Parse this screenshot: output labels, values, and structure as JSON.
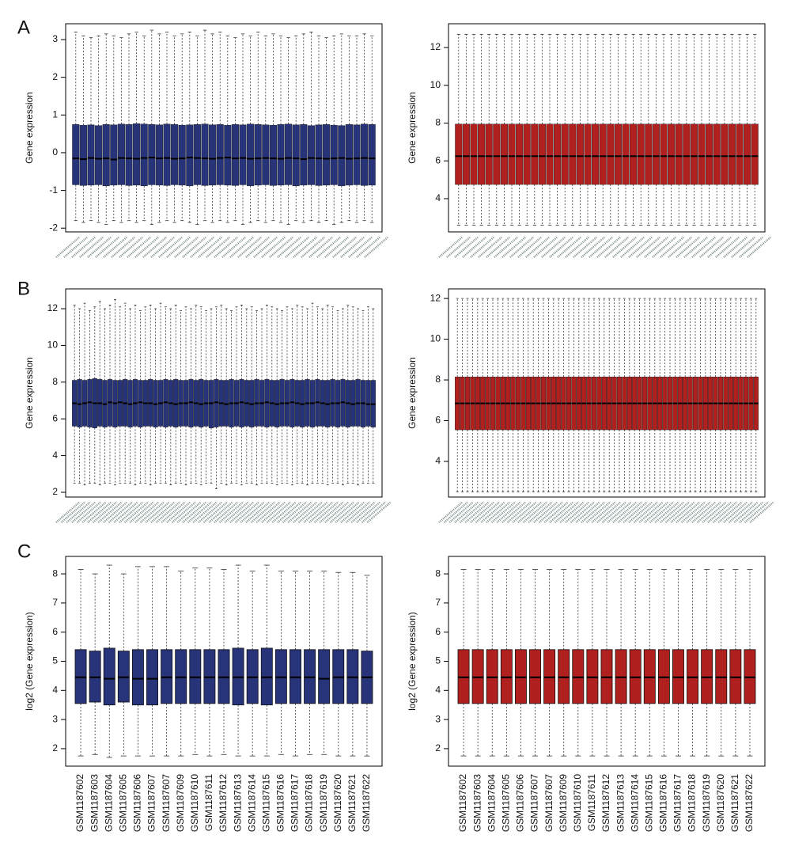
{
  "panel_labels": [
    "A",
    "B",
    "C"
  ],
  "chart_data": [
    {
      "type": "box",
      "ylabel": "Gene expression",
      "color": "#27347a",
      "ylim": [
        -2.1,
        3.42
      ],
      "yticks": [
        -2,
        -1,
        0,
        1,
        2,
        3
      ],
      "whislo": [
        -1.8,
        -1.85,
        -1.8,
        -1.85,
        -1.9,
        -1.8,
        -1.85,
        -1.8,
        -1.85,
        -1.8,
        -1.9,
        -1.85,
        -1.8,
        -1.85,
        -1.8,
        -1.85,
        -1.9,
        -1.8,
        -1.85,
        -1.8,
        -1.85,
        -1.8,
        -1.9,
        -1.85,
        -1.8,
        -1.85,
        -1.8,
        -1.85,
        -1.9,
        -1.8,
        -1.85,
        -1.8,
        -1.85,
        -1.8,
        -1.9,
        -1.85,
        -1.8,
        -1.85,
        -1.8,
        -1.85
      ],
      "q1": [
        -0.85,
        -0.87,
        -0.86,
        -0.85,
        -0.88,
        -0.86,
        -0.85,
        -0.87,
        -0.86,
        -0.88,
        -0.85,
        -0.86,
        -0.87,
        -0.85,
        -0.86,
        -0.88,
        -0.85,
        -0.87,
        -0.86,
        -0.85,
        -0.86,
        -0.87,
        -0.85,
        -0.88,
        -0.86,
        -0.85,
        -0.87,
        -0.86,
        -0.85,
        -0.88,
        -0.86,
        -0.85,
        -0.87,
        -0.86,
        -0.85,
        -0.88,
        -0.86,
        -0.85,
        -0.87,
        -0.86
      ],
      "med": [
        -0.15,
        -0.17,
        -0.14,
        -0.16,
        -0.15,
        -0.18,
        -0.14,
        -0.15,
        -0.16,
        -0.14,
        -0.13,
        -0.15,
        -0.14,
        -0.16,
        -0.15,
        -0.13,
        -0.14,
        -0.15,
        -0.16,
        -0.14,
        -0.13,
        -0.15,
        -0.14,
        -0.16,
        -0.15,
        -0.14,
        -0.15,
        -0.16,
        -0.14,
        -0.15,
        -0.17,
        -0.14,
        -0.15,
        -0.16,
        -0.15,
        -0.14,
        -0.16,
        -0.15,
        -0.14,
        -0.15
      ],
      "q3": [
        0.75,
        0.73,
        0.74,
        0.72,
        0.75,
        0.74,
        0.76,
        0.75,
        0.77,
        0.76,
        0.75,
        0.74,
        0.76,
        0.75,
        0.73,
        0.74,
        0.75,
        0.76,
        0.74,
        0.75,
        0.73,
        0.75,
        0.74,
        0.76,
        0.75,
        0.74,
        0.73,
        0.75,
        0.76,
        0.74,
        0.75,
        0.72,
        0.74,
        0.75,
        0.73,
        0.72,
        0.75,
        0.74,
        0.76,
        0.75
      ],
      "whishi": [
        3.2,
        3.1,
        3.05,
        3.1,
        3.15,
        3.1,
        3.05,
        3.15,
        3.2,
        3.1,
        3.25,
        3.15,
        3.2,
        3.1,
        3.15,
        3.2,
        3.1,
        3.25,
        3.15,
        3.2,
        3.1,
        3.05,
        3.15,
        3.1,
        3.2,
        3.1,
        3.15,
        3.1,
        3.05,
        3.1,
        3.15,
        3.2,
        3.1,
        3.05,
        3.1,
        3.15,
        3.1,
        3.1,
        3.15,
        3.1
      ]
    },
    {
      "type": "box",
      "ylabel": "Gene expression",
      "color": "#b0201e",
      "ylim": [
        2.24,
        13.26
      ],
      "yticks": [
        4,
        6,
        8,
        10,
        12
      ],
      "whislo": [
        2.6,
        2.6,
        2.6,
        2.6,
        2.6,
        2.6,
        2.6,
        2.6,
        2.6,
        2.6,
        2.6,
        2.6,
        2.6,
        2.6,
        2.6,
        2.6,
        2.6,
        2.6,
        2.6,
        2.6,
        2.6,
        2.6,
        2.6,
        2.6,
        2.6,
        2.6,
        2.6,
        2.6,
        2.6,
        2.6,
        2.6,
        2.6,
        2.6,
        2.6,
        2.6,
        2.6,
        2.6,
        2.6,
        2.6,
        2.6
      ],
      "q1": [
        4.75,
        4.75,
        4.75,
        4.75,
        4.75,
        4.75,
        4.75,
        4.75,
        4.75,
        4.75,
        4.75,
        4.75,
        4.75,
        4.75,
        4.75,
        4.75,
        4.75,
        4.75,
        4.75,
        4.75,
        4.75,
        4.75,
        4.75,
        4.75,
        4.75,
        4.75,
        4.75,
        4.75,
        4.75,
        4.75,
        4.75,
        4.75,
        4.75,
        4.75,
        4.75,
        4.75,
        4.75,
        4.75,
        4.75,
        4.75
      ],
      "med": [
        6.25,
        6.25,
        6.25,
        6.25,
        6.25,
        6.25,
        6.25,
        6.25,
        6.25,
        6.25,
        6.25,
        6.25,
        6.25,
        6.25,
        6.25,
        6.25,
        6.25,
        6.25,
        6.25,
        6.25,
        6.25,
        6.25,
        6.25,
        6.25,
        6.25,
        6.25,
        6.25,
        6.25,
        6.25,
        6.25,
        6.25,
        6.25,
        6.25,
        6.25,
        6.25,
        6.25,
        6.25,
        6.25,
        6.25,
        6.25
      ],
      "q3": [
        7.95,
        7.95,
        7.95,
        7.95,
        7.95,
        7.95,
        7.95,
        7.95,
        7.95,
        7.95,
        7.95,
        7.95,
        7.95,
        7.95,
        7.95,
        7.95,
        7.95,
        7.95,
        7.95,
        7.95,
        7.95,
        7.95,
        7.95,
        7.95,
        7.95,
        7.95,
        7.95,
        7.95,
        7.95,
        7.95,
        7.95,
        7.95,
        7.95,
        7.95,
        7.95,
        7.95,
        7.95,
        7.95,
        7.95,
        7.95
      ],
      "whishi": [
        12.7,
        12.7,
        12.7,
        12.7,
        12.7,
        12.7,
        12.7,
        12.7,
        12.7,
        12.7,
        12.7,
        12.7,
        12.7,
        12.7,
        12.7,
        12.7,
        12.7,
        12.7,
        12.7,
        12.7,
        12.7,
        12.7,
        12.7,
        12.7,
        12.7,
        12.7,
        12.7,
        12.7,
        12.7,
        12.7,
        12.7,
        12.7,
        12.7,
        12.7,
        12.7,
        12.7,
        12.7,
        12.7,
        12.7,
        12.7
      ]
    },
    {
      "type": "box",
      "ylabel": "Gene expression",
      "color": "#27347a",
      "ylim": [
        1.74,
        13.08
      ],
      "yticks": [
        2,
        4,
        6,
        8,
        10,
        12
      ],
      "whislo": [
        2.5,
        2.5,
        2.4,
        2.5,
        2.5,
        2.4,
        2.5,
        2.5,
        2.4,
        2.5,
        2.5,
        2.5,
        2.4,
        2.5,
        2.5,
        2.4,
        2.5,
        2.5,
        2.5,
        2.4,
        2.5,
        2.5,
        2.4,
        2.5,
        2.5,
        2.4,
        2.5,
        2.5,
        2.2,
        2.5,
        2.4,
        2.5,
        2.5,
        2.4,
        2.5,
        2.5,
        2.4,
        2.5,
        2.5,
        2.5,
        2.4,
        2.5,
        2.5,
        2.4,
        2.5,
        2.5,
        2.4,
        2.5,
        2.5,
        2.5,
        2.4,
        2.5,
        2.5,
        2.4,
        2.5,
        2.5,
        2.4,
        2.5,
        2.5,
        2.5
      ],
      "q1": [
        5.6,
        5.55,
        5.6,
        5.55,
        5.5,
        5.6,
        5.55,
        5.6,
        5.55,
        5.6,
        5.6,
        5.55,
        5.6,
        5.55,
        5.6,
        5.6,
        5.55,
        5.6,
        5.55,
        5.6,
        5.55,
        5.6,
        5.6,
        5.55,
        5.6,
        5.55,
        5.6,
        5.5,
        5.55,
        5.6,
        5.6,
        5.55,
        5.6,
        5.55,
        5.6,
        5.55,
        5.6,
        5.6,
        5.55,
        5.6,
        5.55,
        5.6,
        5.6,
        5.55,
        5.6,
        5.55,
        5.6,
        5.55,
        5.6,
        5.6,
        5.55,
        5.6,
        5.55,
        5.6,
        5.55,
        5.6,
        5.6,
        5.55,
        5.6,
        5.55
      ],
      "med": [
        6.85,
        6.8,
        6.85,
        6.9,
        6.85,
        6.85,
        6.8,
        6.9,
        6.85,
        6.9,
        6.85,
        6.8,
        6.85,
        6.9,
        6.85,
        6.85,
        6.8,
        6.85,
        6.9,
        6.85,
        6.8,
        6.85,
        6.85,
        6.9,
        6.85,
        6.8,
        6.85,
        6.85,
        6.9,
        6.85,
        6.8,
        6.85,
        6.85,
        6.9,
        6.85,
        6.8,
        6.85,
        6.85,
        6.9,
        6.85,
        6.8,
        6.85,
        6.85,
        6.9,
        6.85,
        6.8,
        6.85,
        6.85,
        6.9,
        6.85,
        6.8,
        6.85,
        6.85,
        6.9,
        6.85,
        6.8,
        6.85,
        6.85,
        6.8,
        6.8
      ],
      "q3": [
        8.1,
        8.15,
        8.1,
        8.15,
        8.2,
        8.15,
        8.1,
        8.15,
        8.1,
        8.1,
        8.15,
        8.1,
        8.15,
        8.1,
        8.1,
        8.15,
        8.1,
        8.1,
        8.15,
        8.1,
        8.15,
        8.1,
        8.1,
        8.15,
        8.1,
        8.15,
        8.1,
        8.1,
        8.15,
        8.1,
        8.1,
        8.15,
        8.1,
        8.15,
        8.1,
        8.1,
        8.15,
        8.1,
        8.15,
        8.1,
        8.1,
        8.15,
        8.1,
        8.15,
        8.1,
        8.1,
        8.15,
        8.1,
        8.15,
        8.1,
        8.1,
        8.15,
        8.1,
        8.15,
        8.1,
        8.1,
        8.15,
        8.1,
        8.1,
        8.1
      ],
      "whishi": [
        12.2,
        12.0,
        12.3,
        11.9,
        12.1,
        12.4,
        12.0,
        12.2,
        12.5,
        12.1,
        12.3,
        12.0,
        12.2,
        11.9,
        12.1,
        12.2,
        12.0,
        12.3,
        12.1,
        12.0,
        12.2,
        11.9,
        12.1,
        12.0,
        12.2,
        12.1,
        11.9,
        12.0,
        12.1,
        12.2,
        12.0,
        11.9,
        12.1,
        12.2,
        12.0,
        12.1,
        11.9,
        12.0,
        12.2,
        12.1,
        12.0,
        11.9,
        12.1,
        12.0,
        12.2,
        12.1,
        12.0,
        12.3,
        12.1,
        12.0,
        12.2,
        12.1,
        11.9,
        12.0,
        12.2,
        12.1,
        12.0,
        11.9,
        12.1,
        12.0
      ]
    },
    {
      "type": "box",
      "ylabel": "Gene expression",
      "color": "#b0201e",
      "ylim": [
        2.25,
        12.47
      ],
      "yticks": [
        4,
        6,
        8,
        10,
        12
      ],
      "whislo": [
        2.5,
        2.5,
        2.5,
        2.5,
        2.5,
        2.5,
        2.5,
        2.5,
        2.5,
        2.5,
        2.5,
        2.5,
        2.5,
        2.5,
        2.5,
        2.5,
        2.5,
        2.5,
        2.5,
        2.5,
        2.5,
        2.5,
        2.5,
        2.5,
        2.5,
        2.5,
        2.5,
        2.5,
        2.5,
        2.5,
        2.5,
        2.5,
        2.5,
        2.5,
        2.5,
        2.5,
        2.5,
        2.5,
        2.5,
        2.5,
        2.5,
        2.5,
        2.5,
        2.5,
        2.5,
        2.5,
        2.5,
        2.5,
        2.5,
        2.5,
        2.5,
        2.5,
        2.5,
        2.5,
        2.5,
        2.5,
        2.5,
        2.5,
        2.5,
        2.5
      ],
      "q1": [
        5.55,
        5.55,
        5.55,
        5.55,
        5.55,
        5.55,
        5.55,
        5.55,
        5.55,
        5.55,
        5.55,
        5.55,
        5.55,
        5.55,
        5.55,
        5.55,
        5.55,
        5.55,
        5.55,
        5.55,
        5.55,
        5.55,
        5.55,
        5.55,
        5.55,
        5.55,
        5.55,
        5.55,
        5.55,
        5.55,
        5.55,
        5.55,
        5.55,
        5.55,
        5.55,
        5.55,
        5.55,
        5.55,
        5.55,
        5.55,
        5.55,
        5.55,
        5.55,
        5.55,
        5.55,
        5.55,
        5.55,
        5.55,
        5.55,
        5.55,
        5.55,
        5.55,
        5.55,
        5.55,
        5.55,
        5.55,
        5.55,
        5.55,
        5.55,
        5.55
      ],
      "med": [
        6.85,
        6.85,
        6.85,
        6.85,
        6.85,
        6.85,
        6.85,
        6.85,
        6.85,
        6.85,
        6.85,
        6.85,
        6.85,
        6.85,
        6.85,
        6.85,
        6.85,
        6.85,
        6.85,
        6.85,
        6.85,
        6.85,
        6.85,
        6.85,
        6.85,
        6.85,
        6.85,
        6.85,
        6.85,
        6.85,
        6.85,
        6.85,
        6.85,
        6.85,
        6.85,
        6.85,
        6.85,
        6.85,
        6.85,
        6.85,
        6.85,
        6.85,
        6.85,
        6.85,
        6.85,
        6.85,
        6.85,
        6.85,
        6.85,
        6.85,
        6.85,
        6.85,
        6.85,
        6.85,
        6.85,
        6.85,
        6.85,
        6.85,
        6.85,
        6.85
      ],
      "q3": [
        8.15,
        8.15,
        8.15,
        8.15,
        8.15,
        8.15,
        8.15,
        8.15,
        8.15,
        8.15,
        8.15,
        8.15,
        8.15,
        8.15,
        8.15,
        8.15,
        8.15,
        8.15,
        8.15,
        8.15,
        8.15,
        8.15,
        8.15,
        8.15,
        8.15,
        8.15,
        8.15,
        8.15,
        8.15,
        8.15,
        8.15,
        8.15,
        8.15,
        8.15,
        8.15,
        8.15,
        8.15,
        8.15,
        8.15,
        8.15,
        8.15,
        8.15,
        8.15,
        8.15,
        8.15,
        8.15,
        8.15,
        8.15,
        8.15,
        8.15,
        8.15,
        8.15,
        8.15,
        8.15,
        8.15,
        8.15,
        8.15,
        8.15,
        8.15,
        8.15
      ],
      "whishi": [
        12.0,
        12.0,
        12.0,
        12.0,
        12.0,
        12.0,
        12.0,
        12.0,
        12.0,
        12.0,
        12.0,
        12.0,
        12.0,
        12.0,
        12.0,
        12.0,
        12.0,
        12.0,
        12.0,
        12.0,
        12.0,
        12.0,
        12.0,
        12.0,
        12.0,
        12.0,
        12.0,
        12.0,
        12.0,
        12.0,
        12.0,
        12.0,
        12.0,
        12.0,
        12.0,
        12.0,
        12.0,
        12.0,
        12.0,
        12.0,
        12.0,
        12.0,
        12.0,
        12.0,
        12.0,
        12.0,
        12.0,
        12.0,
        12.0,
        12.0,
        12.0,
        12.0,
        12.0,
        12.0,
        12.0,
        12.0,
        12.0,
        12.0,
        12.0,
        12.0
      ]
    },
    {
      "type": "box",
      "ylabel": "log2 (Gene expression)",
      "color": "#27347a",
      "ylim": [
        1.4,
        8.6
      ],
      "yticks": [
        2,
        3,
        4,
        5,
        6,
        7,
        8
      ],
      "categories": [
        "GSM1187602",
        "GSM1187603",
        "GSM1187604",
        "GSM1187605",
        "GSM1187606",
        "GSM1187607",
        "GSM1187607",
        "GSM1187609",
        "GSM1187610",
        "GSM1187611",
        "GSM1187612",
        "GSM1187613",
        "GSM1187614",
        "GSM1187615",
        "GSM1187616",
        "GSM1187617",
        "GSM1187618",
        "GSM1187619",
        "GSM1187620",
        "GSM1187621",
        "GSM1187622"
      ],
      "whislo": [
        1.75,
        1.8,
        1.7,
        1.75,
        1.75,
        1.75,
        1.75,
        1.75,
        1.8,
        1.75,
        1.8,
        1.75,
        1.75,
        1.75,
        1.8,
        1.75,
        1.8,
        1.8,
        1.75,
        1.75,
        1.75
      ],
      "q1": [
        3.55,
        3.6,
        3.5,
        3.6,
        3.5,
        3.5,
        3.55,
        3.55,
        3.55,
        3.55,
        3.55,
        3.5,
        3.55,
        3.5,
        3.55,
        3.55,
        3.55,
        3.55,
        3.55,
        3.55,
        3.55
      ],
      "med": [
        4.45,
        4.45,
        4.4,
        4.45,
        4.4,
        4.4,
        4.45,
        4.45,
        4.45,
        4.45,
        4.45,
        4.45,
        4.45,
        4.45,
        4.45,
        4.45,
        4.45,
        4.4,
        4.45,
        4.45,
        4.45
      ],
      "q3": [
        5.4,
        5.35,
        5.45,
        5.35,
        5.4,
        5.4,
        5.4,
        5.4,
        5.4,
        5.4,
        5.4,
        5.45,
        5.4,
        5.45,
        5.4,
        5.4,
        5.4,
        5.4,
        5.4,
        5.4,
        5.35
      ],
      "whishi": [
        8.15,
        8.0,
        8.3,
        8.0,
        8.25,
        8.25,
        8.25,
        8.1,
        8.2,
        8.2,
        8.15,
        8.3,
        8.1,
        8.3,
        8.1,
        8.1,
        8.1,
        8.1,
        8.05,
        8.05,
        7.95
      ]
    },
    {
      "type": "box",
      "ylabel": "log2 (Gene expression)",
      "color": "#b0201e",
      "ylim": [
        1.4,
        8.6
      ],
      "yticks": [
        2,
        3,
        4,
        5,
        6,
        7,
        8
      ],
      "categories": [
        "GSM1187602",
        "GSM1187603",
        "GSM1187604",
        "GSM1187605",
        "GSM1187606",
        "GSM1187607",
        "GSM1187607",
        "GSM1187609",
        "GSM1187610",
        "GSM1187611",
        "GSM1187612",
        "GSM1187613",
        "GSM1187614",
        "GSM1187615",
        "GSM1187616",
        "GSM1187617",
        "GSM1187618",
        "GSM1187619",
        "GSM1187620",
        "GSM1187621",
        "GSM1187622"
      ],
      "whislo": [
        1.75,
        1.75,
        1.75,
        1.75,
        1.75,
        1.75,
        1.75,
        1.75,
        1.75,
        1.75,
        1.75,
        1.75,
        1.75,
        1.75,
        1.75,
        1.75,
        1.75,
        1.75,
        1.75,
        1.75,
        1.75
      ],
      "q1": [
        3.55,
        3.55,
        3.55,
        3.55,
        3.55,
        3.55,
        3.55,
        3.55,
        3.55,
        3.55,
        3.55,
        3.55,
        3.55,
        3.55,
        3.55,
        3.55,
        3.55,
        3.55,
        3.55,
        3.55,
        3.55
      ],
      "med": [
        4.45,
        4.45,
        4.45,
        4.45,
        4.45,
        4.45,
        4.45,
        4.45,
        4.45,
        4.45,
        4.45,
        4.45,
        4.45,
        4.45,
        4.45,
        4.45,
        4.45,
        4.45,
        4.45,
        4.45,
        4.45
      ],
      "q3": [
        5.4,
        5.4,
        5.4,
        5.4,
        5.4,
        5.4,
        5.4,
        5.4,
        5.4,
        5.4,
        5.4,
        5.4,
        5.4,
        5.4,
        5.4,
        5.4,
        5.4,
        5.4,
        5.4,
        5.4,
        5.4
      ],
      "whishi": [
        8.15,
        8.15,
        8.15,
        8.15,
        8.15,
        8.15,
        8.15,
        8.15,
        8.15,
        8.15,
        8.15,
        8.15,
        8.15,
        8.15,
        8.15,
        8.15,
        8.15,
        8.15,
        8.15,
        8.15,
        8.15
      ]
    }
  ]
}
